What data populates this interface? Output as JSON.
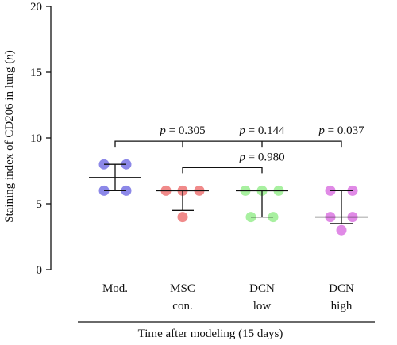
{
  "chart_data": {
    "type": "scatter",
    "ylabel_prefix": "Staining index of CD206 in lung (",
    "ylabel_var": "n",
    "ylabel_suffix": ")",
    "xlabel": "Time after modeling (15 days)",
    "ylim": [
      0,
      20
    ],
    "yticks": [
      0,
      5,
      10,
      15,
      20
    ],
    "grid": false,
    "categories": [
      {
        "line1": "Mod.",
        "line2": ""
      },
      {
        "line1": "MSC",
        "line2": "con."
      },
      {
        "line1": "DCN",
        "line2": "low"
      },
      {
        "line1": "DCN",
        "line2": "high"
      }
    ],
    "groups": [
      {
        "points": [
          6,
          6,
          8,
          8
        ],
        "mean": 7.0,
        "sd_low": 6.0,
        "sd_high": 8.0,
        "color": "#8c88e8"
      },
      {
        "points": [
          6,
          6,
          6,
          4
        ],
        "mean": 6.0,
        "sd_low": 4.5,
        "sd_high": 6.0,
        "color": "#f08a8a"
      },
      {
        "points": [
          6,
          6,
          6,
          4,
          4
        ],
        "mean": 6.0,
        "sd_low": 4.0,
        "sd_high": 6.0,
        "color": "#a8f0a0"
      },
      {
        "points": [
          6,
          6,
          4,
          4,
          3
        ],
        "mean": 4.0,
        "sd_low": 3.5,
        "sd_high": 6.0,
        "color": "#e08ae6"
      }
    ],
    "comparisons": [
      {
        "from": 0,
        "to": 3,
        "y": 9.75,
        "p_var": "p",
        "p_text": " = 0.305",
        "label_at": 1
      },
      {
        "from": 0,
        "to": 3,
        "y": 9.75,
        "p_var": "p",
        "p_text": " = 0.144",
        "label_at": 2
      },
      {
        "from": 0,
        "to": 3,
        "y": 9.75,
        "p_var": "p",
        "p_text": " = 0.037",
        "label_at": 3
      },
      {
        "from": 1,
        "to": 2,
        "y": 7.75,
        "p_var": "p",
        "p_text": " = 0.980",
        "label_at": 2
      }
    ]
  }
}
